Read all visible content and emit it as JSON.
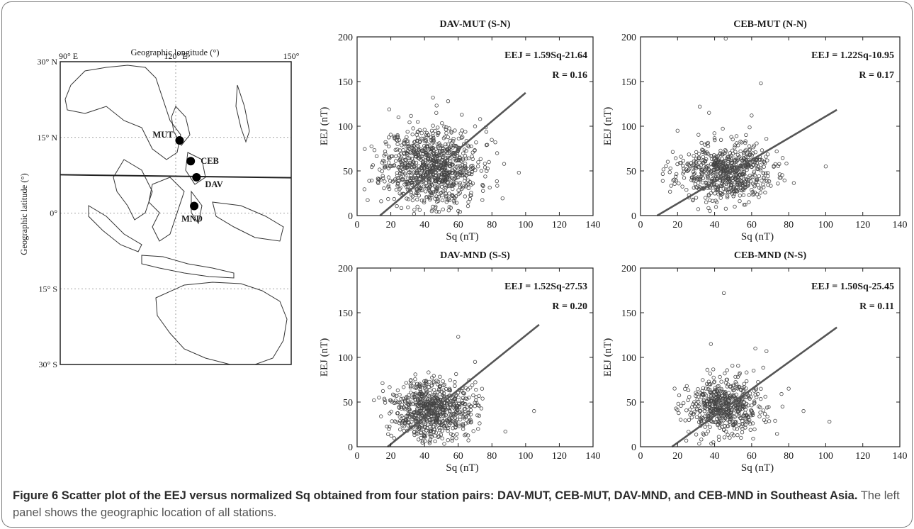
{
  "map": {
    "title": "Geographic longitude (°)",
    "ylabel": "Geographic latitude (°)",
    "lon_ticks": [
      {
        "label": "90° E",
        "lon": 90
      },
      {
        "label": "120° E",
        "lon": 120
      },
      {
        "label": "150°",
        "lon": 150
      }
    ],
    "lat_ticks": [
      {
        "label": "30° N",
        "lat": 30
      },
      {
        "label": "15° N",
        "lat": 15
      },
      {
        "label": "0°",
        "lat": 0
      },
      {
        "label": "15° S",
        "lat": -15
      },
      {
        "label": "30° S",
        "lat": -30
      }
    ],
    "stations": [
      {
        "name": "MUT",
        "lon": 121,
        "lat": 14.4
      },
      {
        "name": "CEB",
        "lon": 123.9,
        "lat": 10.3
      },
      {
        "name": "DAV",
        "lon": 125.4,
        "lat": 7.1
      },
      {
        "name": "MND",
        "lon": 124.8,
        "lat": 1.4
      }
    ],
    "dip_equator": [
      [
        90,
        7.6
      ],
      [
        150,
        7.0
      ]
    ]
  },
  "chart_data": [
    {
      "type": "scatter",
      "title": "DAV-MUT (S-N)",
      "xlabel": "Sq (nT)",
      "ylabel": "EEJ (nT)",
      "xlim": [
        0,
        140
      ],
      "ylim": [
        0,
        200
      ],
      "xticks": [
        "0",
        "20",
        "40",
        "60",
        "80",
        "100",
        "120",
        "140"
      ],
      "yticks": [
        "0",
        "50",
        "100",
        "150",
        "200"
      ],
      "equation": "EEJ = 1.59Sq-21.64",
      "r_label": "R = 0.16",
      "fit": {
        "slope": 1.59,
        "intercept": -21.64,
        "x_range": [
          13.6,
          100
        ]
      },
      "points": {
        "n": 900,
        "cx": 44,
        "cy": 55,
        "sx": 14,
        "sy": 22,
        "xmin": 4,
        "xmax": 95,
        "ymin": 2,
        "ymax": 135,
        "seed": 11
      },
      "outliers": [
        [
          45,
          132
        ],
        [
          54,
          128
        ],
        [
          73,
          108
        ],
        [
          96,
          48
        ],
        [
          82,
          82
        ]
      ]
    },
    {
      "type": "scatter",
      "title": "CEB-MUT (N-N)",
      "xlabel": "Sq (nT)",
      "ylabel": "EEJ (nT)",
      "xlim": [
        0,
        140
      ],
      "ylim": [
        0,
        200
      ],
      "xticks": [
        "0",
        "20",
        "40",
        "60",
        "80",
        "100",
        "120",
        "140"
      ],
      "yticks": [
        "0",
        "50",
        "100",
        "150",
        "200"
      ],
      "equation": "EEJ = 1.22Sq-10.95",
      "r_label": "R = 0.17",
      "fit": {
        "slope": 1.22,
        "intercept": -10.95,
        "x_range": [
          9,
          106
        ]
      },
      "points": {
        "n": 650,
        "cx": 45,
        "cy": 48,
        "sx": 13,
        "sy": 16,
        "xmin": 10,
        "xmax": 103,
        "ymin": 5,
        "ymax": 150,
        "seed": 23
      },
      "outliers": [
        [
          46,
          198
        ],
        [
          65,
          148
        ],
        [
          32,
          122
        ],
        [
          37,
          115
        ],
        [
          60,
          112
        ],
        [
          20,
          95
        ],
        [
          100,
          55
        ]
      ]
    },
    {
      "type": "scatter",
      "title": "DAV-MND (S-S)",
      "xlabel": "Sq (nT)",
      "ylabel": "EEJ (nT)",
      "xlim": [
        0,
        140
      ],
      "ylim": [
        0,
        200
      ],
      "xticks": [
        "0",
        "20",
        "40",
        "60",
        "80",
        "100",
        "120",
        "140"
      ],
      "yticks": [
        "0",
        "50",
        "100",
        "150",
        "200"
      ],
      "equation": "EEJ = 1.52Sq-27.53",
      "r_label": "R = 0.20",
      "fit": {
        "slope": 1.52,
        "intercept": -27.53,
        "x_range": [
          18.1,
          108
        ]
      },
      "points": {
        "n": 700,
        "cx": 45,
        "cy": 42,
        "sx": 12,
        "sy": 17,
        "xmin": 8,
        "xmax": 80,
        "ymin": 3,
        "ymax": 100,
        "seed": 37
      },
      "outliers": [
        [
          60,
          123
        ],
        [
          105,
          40
        ],
        [
          88,
          17
        ],
        [
          10,
          52
        ],
        [
          13,
          55
        ],
        [
          70,
          95
        ]
      ]
    },
    {
      "type": "scatter",
      "title": "CEB-MND (N-S)",
      "xlabel": "Sq (nT)",
      "ylabel": "EEJ (nT)",
      "xlim": [
        0,
        140
      ],
      "ylim": [
        0,
        200
      ],
      "xticks": [
        "0",
        "20",
        "40",
        "60",
        "80",
        "100",
        "120",
        "140"
      ],
      "yticks": [
        "0",
        "50",
        "100",
        "150",
        "200"
      ],
      "equation": "EEJ = 1.50Sq-25.45",
      "r_label": "R = 0.11",
      "fit": {
        "slope": 1.5,
        "intercept": -25.45,
        "x_range": [
          17,
          106
        ]
      },
      "points": {
        "n": 550,
        "cx": 46,
        "cy": 44,
        "sx": 11,
        "sy": 17,
        "xmin": 18,
        "xmax": 78,
        "ymin": 3,
        "ymax": 110,
        "seed": 53
      },
      "outliers": [
        [
          45,
          172
        ],
        [
          38,
          115
        ],
        [
          62,
          110
        ],
        [
          68,
          107
        ],
        [
          102,
          28
        ],
        [
          88,
          40
        ],
        [
          80,
          65
        ]
      ]
    }
  ],
  "caption": {
    "bold": "Figure 6 Scatter plot of the EEJ versus normalized Sq obtained from four station pairs: DAV-MUT, CEB-MUT, DAV-MND, and CEB-MND in Southeast Asia.",
    "rest": " The left panel shows the geographic location of all stations."
  }
}
